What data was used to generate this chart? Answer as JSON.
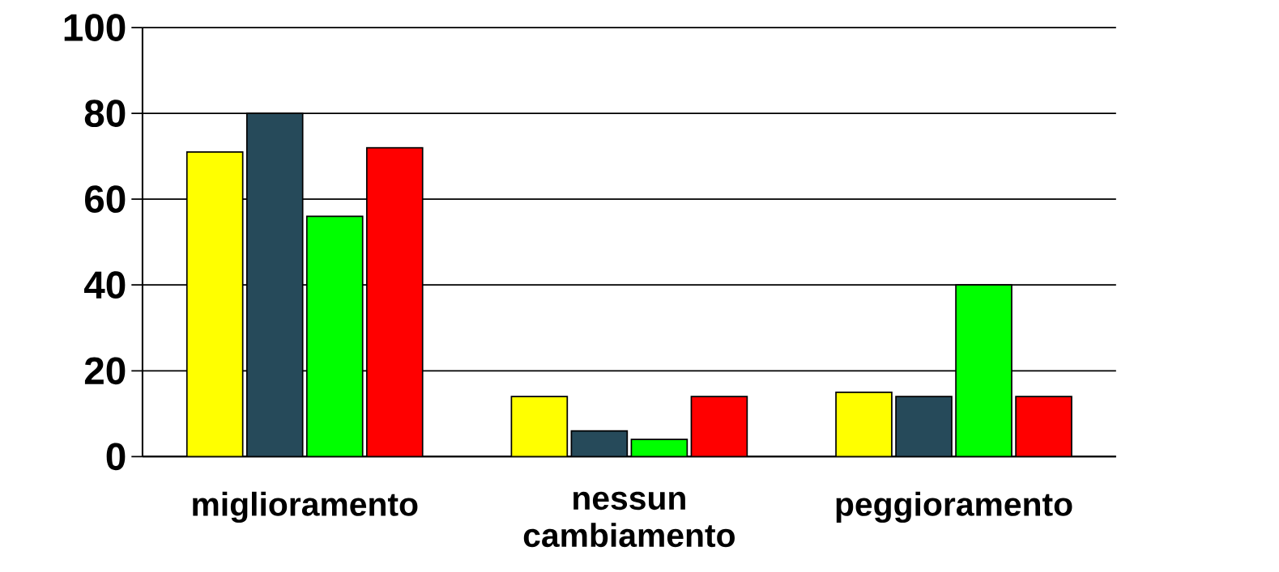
{
  "chart_data": {
    "type": "bar",
    "categories": [
      "miglioramento",
      "nessun cambiamento",
      "peggioramento"
    ],
    "series": [
      {
        "color": "#ffff00",
        "values": [
          71,
          14,
          15
        ]
      },
      {
        "color": "#264a5a",
        "values": [
          80,
          6,
          14
        ]
      },
      {
        "color": "#00ff00",
        "values": [
          56,
          4,
          40
        ]
      },
      {
        "color": "#ff0000",
        "values": [
          72,
          14,
          14
        ]
      }
    ],
    "ylim": [
      0,
      100
    ],
    "yticks": [
      0,
      20,
      40,
      60,
      80,
      100
    ],
    "grid": "y"
  }
}
